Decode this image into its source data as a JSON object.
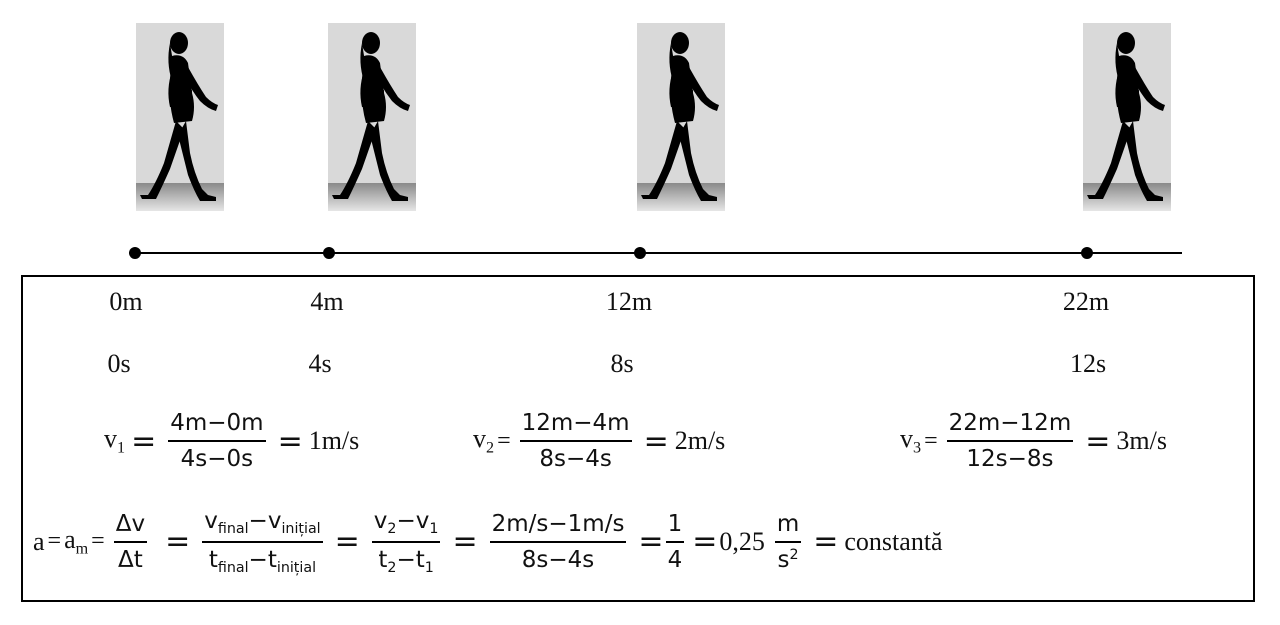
{
  "markers": [
    {
      "distance": "0m",
      "time": "0s"
    },
    {
      "distance": "4m",
      "time": "4s"
    },
    {
      "distance": "12m",
      "time": "8s"
    },
    {
      "distance": "22m",
      "time": "12s"
    }
  ],
  "v1": {
    "label": "v",
    "sub": "1",
    "num": "4m−0m",
    "den": "4s−0s",
    "result": "1m/s"
  },
  "v2": {
    "label": "v",
    "sub": "2",
    "num": "12m−4m",
    "den": "8s−4s",
    "result": "2m/s"
  },
  "v3": {
    "label": "v",
    "sub": "3",
    "num": "22m−12m",
    "den": "12s−8s",
    "result": "3m/s"
  },
  "accel": {
    "a": "a",
    "am": "a",
    "am_sub": "m",
    "dv": "Δv",
    "dt": "Δt",
    "vfinal": "v",
    "vfinal_sub": "final",
    "vinit": "v",
    "vinit_sub": "inițial",
    "tfinal": "t",
    "tfinal_sub": "final",
    "tinit": "t",
    "tinit_sub": "inițial",
    "v2": "v",
    "v2_sub": "2",
    "v1": "v",
    "v1_sub": "1",
    "t2": "t",
    "t2_sub": "2",
    "t1": "t",
    "t1_sub": "1",
    "num3": "2m/s−1m/s",
    "den3": "8s−4s",
    "one": "1",
    "four": "4",
    "value": "0,25",
    "unit_num": "m",
    "unit_den": "s",
    "unit_exp": "2",
    "result": "constantă"
  }
}
